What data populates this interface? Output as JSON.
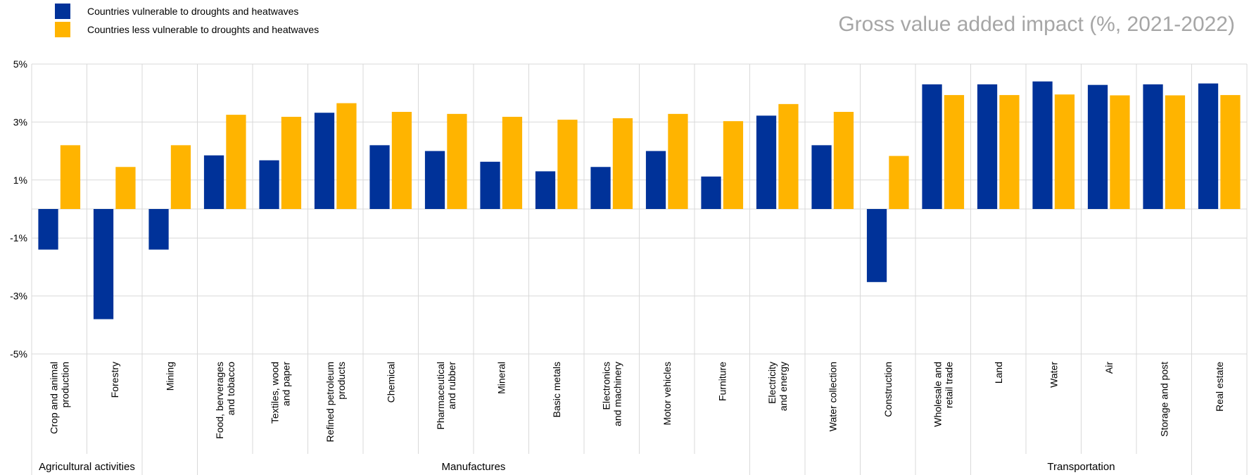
{
  "colors": {
    "vulnerable": "#003299",
    "less_vulnerable": "#ffb400",
    "grid": "#d9d9d9",
    "title": "#a6a6a6"
  },
  "chart_data": {
    "type": "bar",
    "title": "Gross value added impact (%, 2021-2022)",
    "xlabel": "",
    "ylabel": "",
    "ylim": [
      -5,
      5
    ],
    "yticks": [
      "-5%",
      "-3%",
      "-1%",
      "1%",
      "3%",
      "5%"
    ],
    "yticks_values": [
      -5,
      -3,
      -1,
      1,
      3,
      5
    ],
    "grid": true,
    "legend_position": "top-left",
    "categories": [
      [
        "Crop and animal",
        "production"
      ],
      [
        "Forestry"
      ],
      [
        "Mining"
      ],
      [
        "Food, berverages",
        "and tobacco"
      ],
      [
        "Textiles, wood",
        "and paper"
      ],
      [
        "Refined petroleum",
        "products"
      ],
      [
        "Chemical"
      ],
      [
        "Pharmaceutical",
        "and rubber"
      ],
      [
        "Mineral"
      ],
      [
        "Basic metals"
      ],
      [
        "Electronics",
        "and machinery"
      ],
      [
        "Motor vehicles"
      ],
      [
        "Furniture"
      ],
      [
        "Electricity",
        "and energy"
      ],
      [
        "Water collection"
      ],
      [
        "Construction"
      ],
      [
        "Wholesale and",
        "retail trade"
      ],
      [
        "Land"
      ],
      [
        "Water"
      ],
      [
        "Air"
      ],
      [
        "Storage and post"
      ],
      [
        "Real estate"
      ]
    ],
    "groups": [
      {
        "label": "Agricultural activities",
        "start": 0,
        "end": 1
      },
      {
        "label": "",
        "start": 2,
        "end": 2
      },
      {
        "label": "Manufactures",
        "start": 3,
        "end": 12
      },
      {
        "label": "",
        "start": 13,
        "end": 13
      },
      {
        "label": "",
        "start": 14,
        "end": 14
      },
      {
        "label": "",
        "start": 15,
        "end": 15
      },
      {
        "label": "",
        "start": 16,
        "end": 16
      },
      {
        "label": "Transportation",
        "start": 17,
        "end": 20
      },
      {
        "label": "",
        "start": 21,
        "end": 21
      }
    ],
    "series": [
      {
        "name": "Countries vulnerable to droughts and heatwaves",
        "values": [
          -1.4,
          -3.8,
          -1.4,
          1.85,
          1.68,
          3.32,
          2.2,
          2.0,
          1.63,
          1.3,
          1.45,
          2.0,
          1.12,
          3.22,
          2.2,
          -2.52,
          4.3,
          4.3,
          4.4,
          4.28,
          4.3,
          4.33
        ]
      },
      {
        "name": "Countries less vulnerable to droughts and heatwaves",
        "values": [
          2.2,
          1.45,
          2.2,
          3.25,
          3.18,
          3.65,
          3.35,
          3.28,
          3.18,
          3.08,
          3.13,
          3.28,
          3.03,
          3.62,
          3.35,
          1.83,
          3.93,
          3.93,
          3.95,
          3.92,
          3.92,
          3.93
        ]
      }
    ]
  }
}
